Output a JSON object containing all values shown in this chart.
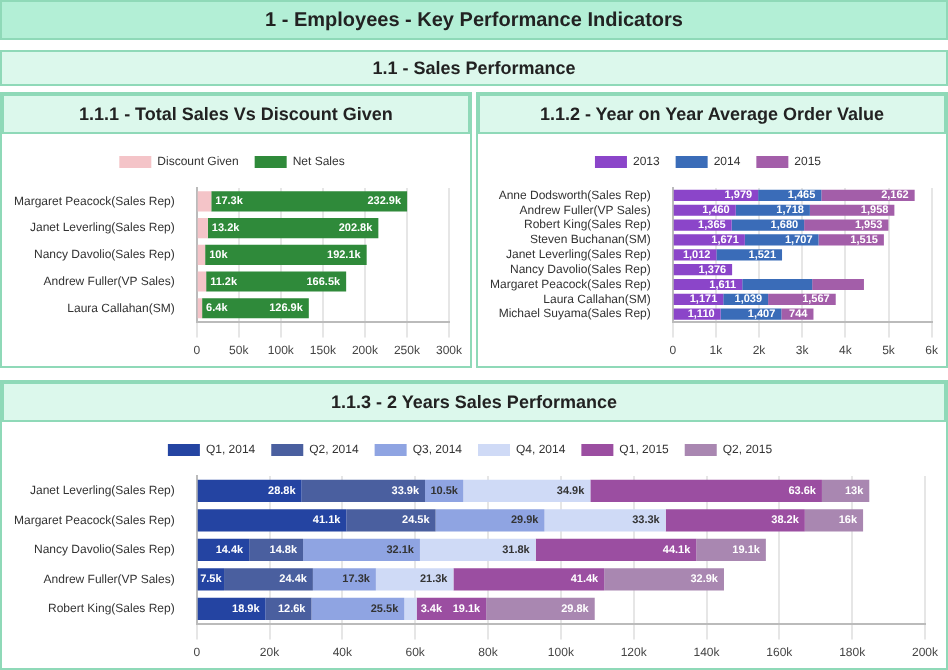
{
  "chart_data": [
    {
      "type": "other",
      "title": "1 - Employees - Key Performance Indicators",
      "subtitle": "1.1 - Sales Performance"
    },
    {
      "type": "bar",
      "title": "1.1.1 - Total Sales Vs Discount Given",
      "orientation": "horizontal",
      "stacked": true,
      "legend": "top",
      "grid": "x",
      "categories": [
        "Margaret Peacock(Sales Rep)",
        "Janet Leverling(Sales Rep)",
        "Nancy Davolio(Sales Rep)",
        "Andrew Fuller(VP Sales)",
        "Laura Callahan(SM)"
      ],
      "series": [
        {
          "name": "Discount Given",
          "color": "#f4c4c8",
          "values": [
            17.3,
            13.2,
            10,
            11.2,
            6.4
          ],
          "value_labels": [
            "17.3k",
            "13.2k",
            "10k",
            "11.2k",
            "6.4k"
          ]
        },
        {
          "name": "Net Sales",
          "color": "#2f8a3a",
          "values": [
            232.9,
            202.8,
            192.1,
            166.5,
            126.9
          ],
          "value_labels": [
            "232.9k",
            "202.8k",
            "192.1k",
            "166.5k",
            "126.9k"
          ]
        }
      ],
      "xlim": [
        0,
        300
      ],
      "xticks": [
        {
          "value": 0,
          "label": "0"
        },
        {
          "value": 50,
          "label": "50k"
        },
        {
          "value": 100,
          "label": "100k"
        },
        {
          "value": 150,
          "label": "150k"
        },
        {
          "value": 200,
          "label": "200k"
        },
        {
          "value": 250,
          "label": "250k"
        },
        {
          "value": 300,
          "label": "300k"
        }
      ]
    },
    {
      "type": "bar",
      "title": "1.1.2 - Year on Year Average Order Value",
      "orientation": "horizontal",
      "stacked": true,
      "legend": "top",
      "grid": "x",
      "categories": [
        "Anne Dodsworth(Sales Rep)",
        "Andrew Fuller(VP Sales)",
        "Robert King(Sales Rep)",
        "Steven Buchanan(SM)",
        "Janet Leverling(Sales Rep)",
        "Nancy Davolio(Sales Rep)",
        "Margaret Peacock(Sales Rep)",
        "Laura Callahan(SM)",
        "Michael Suyama(Sales Rep)"
      ],
      "series": [
        {
          "name": "2013",
          "color": "#8b45c9",
          "values": [
            1979,
            1460,
            1365,
            1671,
            1012,
            1376,
            1611,
            1171,
            1110
          ],
          "value_labels": [
            "1,979",
            "1,460",
            "1,365",
            "1,671",
            "1,012",
            "1,376",
            "1,611",
            "1,171",
            "1,110"
          ]
        },
        {
          "name": "2014",
          "color": "#3a6cb8",
          "values": [
            1465,
            1718,
            1680,
            1707,
            1521,
            null,
            1620,
            1039,
            1407
          ],
          "value_labels": [
            "1,465",
            "1,718",
            "1,680",
            "1,707",
            "1,521",
            null,
            null,
            "1,039",
            "1,407"
          ]
        },
        {
          "name": "2015",
          "color": "#a35ea9",
          "values": [
            2162,
            1958,
            1953,
            1515,
            null,
            null,
            1200,
            1567,
            744
          ],
          "value_labels": [
            "2,162",
            "1,958",
            "1,953",
            "1,515",
            null,
            null,
            null,
            "1,567",
            "744"
          ]
        }
      ],
      "xlim": [
        0,
        6000
      ],
      "xticks": [
        {
          "value": 0,
          "label": "0"
        },
        {
          "value": 1000,
          "label": "1k"
        },
        {
          "value": 2000,
          "label": "2k"
        },
        {
          "value": 3000,
          "label": "3k"
        },
        {
          "value": 4000,
          "label": "4k"
        },
        {
          "value": 5000,
          "label": "5k"
        },
        {
          "value": 6000,
          "label": "6k"
        }
      ]
    },
    {
      "type": "bar",
      "title": "1.1.3 - 2 Years Sales Performance",
      "orientation": "horizontal",
      "stacked": true,
      "legend": "top",
      "grid": "x",
      "categories": [
        "Janet Leverling(Sales Rep)",
        "Margaret Peacock(Sales Rep)",
        "Nancy Davolio(Sales Rep)",
        "Andrew Fuller(VP Sales)",
        "Robert King(Sales Rep)"
      ],
      "series": [
        {
          "name": "Q1, 2014",
          "color": "#2444a2",
          "values": [
            28.8,
            41.1,
            14.4,
            7.5,
            18.9
          ],
          "value_labels": [
            "28.8k",
            "41.1k",
            "14.4k",
            "7.5k",
            "18.9k"
          ]
        },
        {
          "name": "Q2, 2014",
          "color": "#4a5f9f",
          "values": [
            33.9,
            24.5,
            14.8,
            24.4,
            12.6
          ],
          "value_labels": [
            "33.9k",
            "24.5k",
            "14.8k",
            "24.4k",
            "12.6k"
          ]
        },
        {
          "name": "Q3, 2014",
          "color": "#8fa4e2",
          "values": [
            10.5,
            29.9,
            32.1,
            17.3,
            25.5
          ],
          "value_labels": [
            "10.5k",
            "29.9k",
            "32.1k",
            "17.3k",
            "25.5k"
          ]
        },
        {
          "name": "Q4, 2014",
          "color": "#cfdaf6",
          "values": [
            34.9,
            33.3,
            31.8,
            21.3,
            3.4
          ],
          "value_labels": [
            "34.9k",
            "33.3k",
            "31.8k",
            "21.3k",
            "3.4k"
          ]
        },
        {
          "name": "Q1, 2015",
          "color": "#9b4ea1",
          "values": [
            63.6,
            38.2,
            44.1,
            41.4,
            19.1
          ],
          "value_labels": [
            "63.6k",
            "38.2k",
            "44.1k",
            "41.4k",
            "19.1k"
          ]
        },
        {
          "name": "Q2, 2015",
          "color": "#a987b1",
          "values": [
            13,
            16,
            19.1,
            32.9,
            29.8
          ],
          "value_labels": [
            "13k",
            "16k",
            "19.1k",
            "32.9k",
            "29.8k"
          ]
        }
      ],
      "xlim": [
        0,
        200
      ],
      "xticks": [
        {
          "value": 0,
          "label": "0"
        },
        {
          "value": 20,
          "label": "20k"
        },
        {
          "value": 40,
          "label": "40k"
        },
        {
          "value": 60,
          "label": "60k"
        },
        {
          "value": 80,
          "label": "80k"
        },
        {
          "value": 100,
          "label": "100k"
        },
        {
          "value": 120,
          "label": "120k"
        },
        {
          "value": 140,
          "label": "140k"
        },
        {
          "value": 160,
          "label": "160k"
        },
        {
          "value": 180,
          "label": "180k"
        },
        {
          "value": 200,
          "label": "200k"
        }
      ]
    }
  ]
}
